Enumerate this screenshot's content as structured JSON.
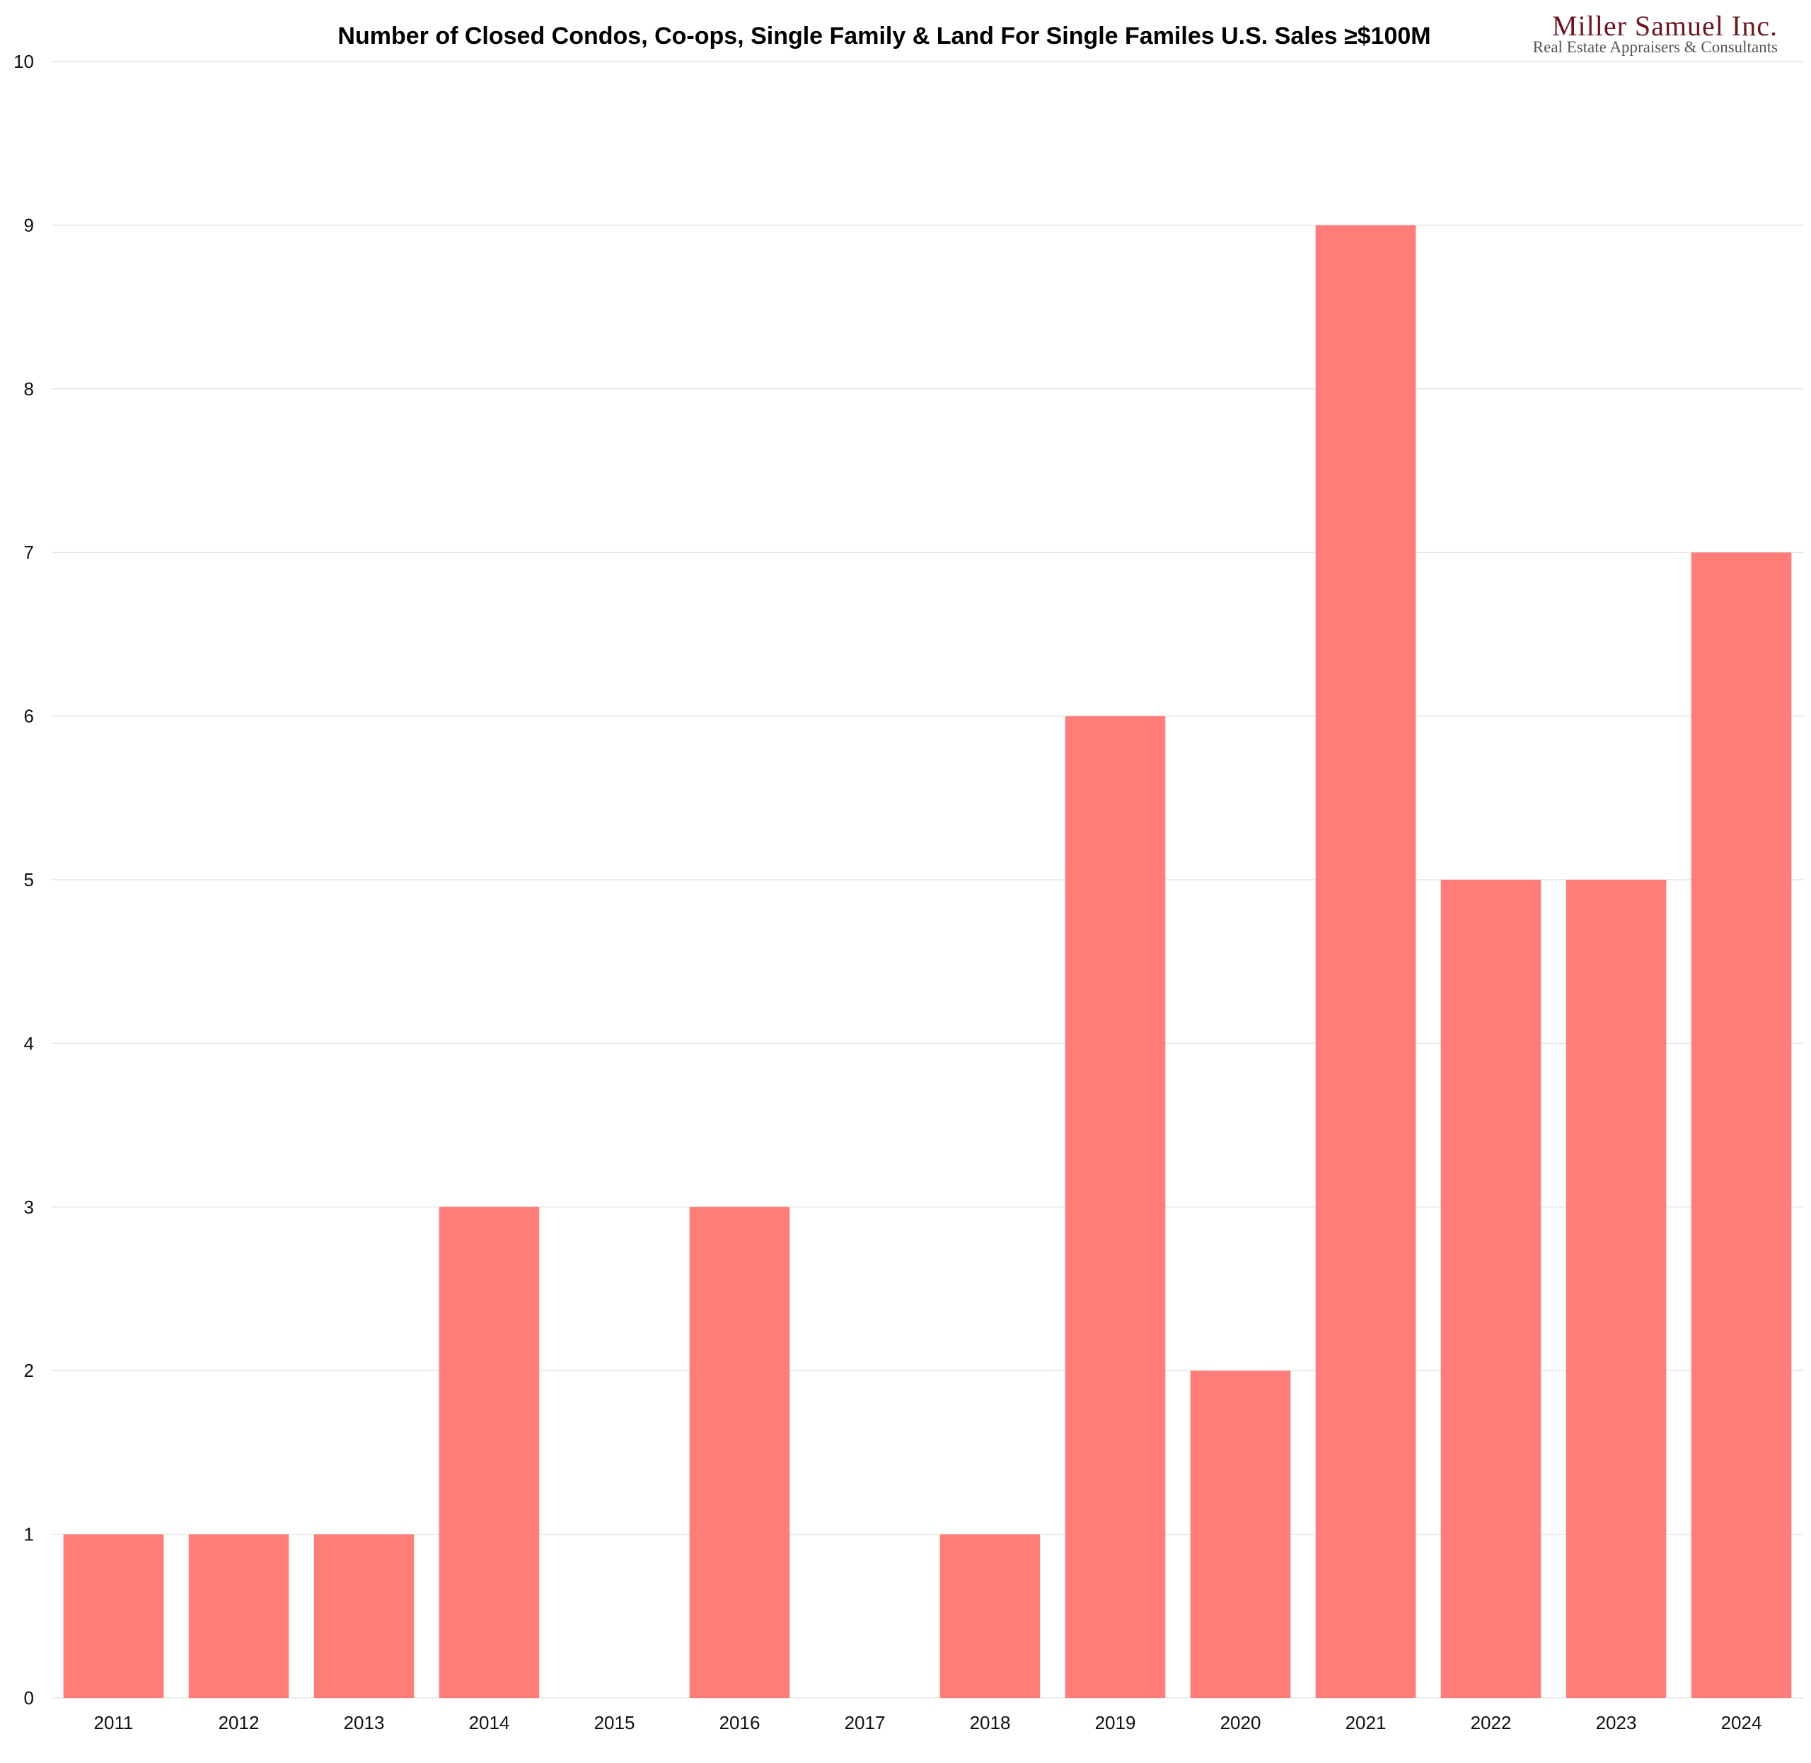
{
  "branding": {
    "name": "Miller Samuel Inc.",
    "tagline": "Real Estate Appraisers & Consultants",
    "color": "#6b1620"
  },
  "chart_data": {
    "type": "bar",
    "title": "Number of Closed Condos, Co-ops, Single Family & Land For Single Familes U.S. Sales ≥$100M",
    "xlabel": "",
    "ylabel": "",
    "categories": [
      "2011",
      "2012",
      "2013",
      "2014",
      "2015",
      "2016",
      "2017",
      "2018",
      "2019",
      "2020",
      "2021",
      "2022",
      "2023",
      "2024"
    ],
    "values": [
      1,
      1,
      1,
      3,
      0,
      3,
      0,
      1,
      6,
      2,
      9,
      5,
      5,
      7
    ],
    "ylim": [
      0,
      10
    ],
    "yticks": [
      "0",
      "1",
      "2",
      "3",
      "4",
      "5",
      "6",
      "7",
      "8",
      "9",
      "10"
    ],
    "grid": true,
    "bar_color": "#ff7d78",
    "grid_color": "#e6e6e6"
  }
}
